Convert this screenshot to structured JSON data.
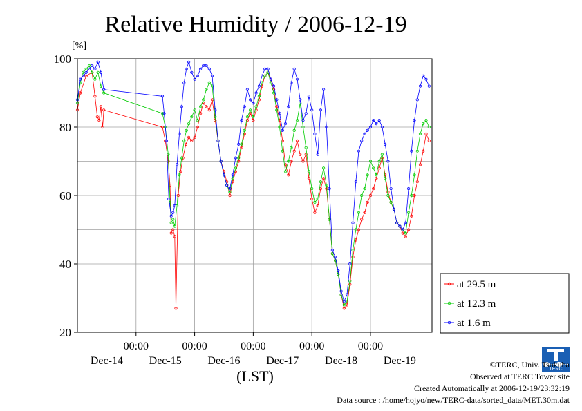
{
  "chart_data": {
    "type": "line",
    "title": "Relative Humidity / 2006-12-19",
    "unit": "[%]",
    "xlabel": "(LST)",
    "ylim": [
      20,
      100
    ],
    "yticks": [
      20,
      40,
      60,
      80,
      100
    ],
    "xlim": [
      0,
      6.05
    ],
    "xticks": [
      {
        "x": 1,
        "time": "00:00",
        "date": "Dec-14"
      },
      {
        "x": 2,
        "time": "00:00",
        "date": "Dec-15"
      },
      {
        "x": 3,
        "time": "00:00",
        "date": "Dec-16"
      },
      {
        "x": 4,
        "time": "00:00",
        "date": "Dec-17"
      },
      {
        "x": 5,
        "time": "00:00",
        "date": "Dec-18"
      }
    ],
    "extra_date_labels": [
      {
        "x": 0.5,
        "date": "Dec-14"
      },
      {
        "x": 1.5,
        "date": "Dec-15"
      },
      {
        "x": 2.5,
        "date": "Dec-16"
      },
      {
        "x": 3.5,
        "date": "Dec-17"
      },
      {
        "x": 4.5,
        "date": "Dec-18"
      },
      {
        "x": 5.5,
        "date": "Dec-19"
      }
    ],
    "grid": true,
    "legend_position": "bottom-right outside",
    "series": [
      {
        "name": "at 29.5 m",
        "color": "#ff0000",
        "points": [
          [
            0,
            85
          ],
          [
            0.05,
            90
          ],
          [
            0.15,
            95
          ],
          [
            0.25,
            96
          ],
          [
            0.3,
            89
          ],
          [
            0.34,
            83
          ],
          [
            0.37,
            82
          ],
          [
            0.4,
            86
          ],
          [
            0.43,
            80
          ],
          [
            0.45,
            85
          ],
          [
            1.45,
            80
          ],
          [
            1.5,
            76
          ],
          [
            1.55,
            70
          ],
          [
            1.58,
            63
          ],
          [
            1.6,
            49
          ],
          [
            1.63,
            50
          ],
          [
            1.66,
            48
          ],
          [
            1.68,
            27
          ],
          [
            1.72,
            60
          ],
          [
            1.76,
            67
          ],
          [
            1.8,
            71
          ],
          [
            1.85,
            75
          ],
          [
            1.9,
            77
          ],
          [
            1.95,
            76
          ],
          [
            2.0,
            77
          ],
          [
            2.05,
            80
          ],
          [
            2.1,
            84
          ],
          [
            2.15,
            87
          ],
          [
            2.2,
            86
          ],
          [
            2.25,
            85
          ],
          [
            2.3,
            88
          ],
          [
            2.35,
            82
          ],
          [
            2.4,
            76
          ],
          [
            2.45,
            70
          ],
          [
            2.5,
            67
          ],
          [
            2.55,
            64
          ],
          [
            2.6,
            60
          ],
          [
            2.65,
            64
          ],
          [
            2.7,
            67
          ],
          [
            2.75,
            70
          ],
          [
            2.8,
            74
          ],
          [
            2.85,
            78
          ],
          [
            2.9,
            82
          ],
          [
            2.95,
            84
          ],
          [
            3.0,
            82
          ],
          [
            3.05,
            85
          ],
          [
            3.1,
            88
          ],
          [
            3.15,
            92
          ],
          [
            3.2,
            95
          ],
          [
            3.25,
            96
          ],
          [
            3.3,
            94
          ],
          [
            3.35,
            91
          ],
          [
            3.4,
            86
          ],
          [
            3.45,
            82
          ],
          [
            3.5,
            76
          ],
          [
            3.55,
            69
          ],
          [
            3.6,
            66
          ],
          [
            3.65,
            70
          ],
          [
            3.7,
            73
          ],
          [
            3.75,
            76
          ],
          [
            3.8,
            72
          ],
          [
            3.85,
            70
          ],
          [
            3.9,
            72
          ],
          [
            3.95,
            65
          ],
          [
            4.0,
            59
          ],
          [
            4.05,
            55
          ],
          [
            4.1,
            57
          ],
          [
            4.15,
            62
          ],
          [
            4.2,
            65
          ],
          [
            4.25,
            62
          ],
          [
            4.3,
            53
          ],
          [
            4.35,
            43
          ],
          [
            4.4,
            41
          ],
          [
            4.45,
            37
          ],
          [
            4.5,
            31
          ],
          [
            4.55,
            27
          ],
          [
            4.6,
            28
          ],
          [
            4.65,
            34
          ],
          [
            4.7,
            42
          ],
          [
            4.75,
            47
          ],
          [
            4.8,
            50
          ],
          [
            4.85,
            53
          ],
          [
            4.9,
            55
          ],
          [
            4.95,
            58
          ],
          [
            5.0,
            60
          ],
          [
            5.05,
            62
          ],
          [
            5.1,
            65
          ],
          [
            5.15,
            68
          ],
          [
            5.2,
            71
          ],
          [
            5.25,
            66
          ],
          [
            5.3,
            61
          ],
          [
            5.35,
            58
          ],
          [
            5.4,
            56
          ],
          [
            5.45,
            52
          ],
          [
            5.5,
            51
          ],
          [
            5.55,
            49
          ],
          [
            5.6,
            48
          ],
          [
            5.65,
            50
          ],
          [
            5.7,
            54
          ],
          [
            5.75,
            60
          ],
          [
            5.8,
            64
          ],
          [
            5.85,
            69
          ],
          [
            5.9,
            73
          ],
          [
            5.95,
            78
          ],
          [
            6.0,
            76
          ]
        ]
      },
      {
        "name": "at 12.3 m",
        "color": "#00cc00",
        "points": [
          [
            0,
            87
          ],
          [
            0.05,
            93
          ],
          [
            0.1,
            96
          ],
          [
            0.15,
            97
          ],
          [
            0.2,
            98
          ],
          [
            0.25,
            96
          ],
          [
            0.3,
            94
          ],
          [
            0.35,
            96
          ],
          [
            0.4,
            92
          ],
          [
            0.45,
            90
          ],
          [
            1.45,
            84
          ],
          [
            1.5,
            80
          ],
          [
            1.55,
            72
          ],
          [
            1.58,
            58
          ],
          [
            1.6,
            52
          ],
          [
            1.63,
            53
          ],
          [
            1.66,
            51
          ],
          [
            1.7,
            57
          ],
          [
            1.74,
            66
          ],
          [
            1.78,
            71
          ],
          [
            1.82,
            76
          ],
          [
            1.86,
            79
          ],
          [
            1.9,
            81
          ],
          [
            1.95,
            83
          ],
          [
            2.0,
            85
          ],
          [
            2.05,
            82
          ],
          [
            2.1,
            86
          ],
          [
            2.15,
            88
          ],
          [
            2.2,
            91
          ],
          [
            2.25,
            93
          ],
          [
            2.3,
            92
          ],
          [
            2.35,
            83
          ],
          [
            2.4,
            76
          ],
          [
            2.45,
            70
          ],
          [
            2.5,
            66
          ],
          [
            2.55,
            63
          ],
          [
            2.6,
            61
          ],
          [
            2.65,
            65
          ],
          [
            2.7,
            68
          ],
          [
            2.75,
            71
          ],
          [
            2.8,
            75
          ],
          [
            2.85,
            79
          ],
          [
            2.9,
            83
          ],
          [
            2.95,
            85
          ],
          [
            3.0,
            83
          ],
          [
            3.05,
            86
          ],
          [
            3.1,
            89
          ],
          [
            3.15,
            93
          ],
          [
            3.2,
            95
          ],
          [
            3.25,
            96
          ],
          [
            3.3,
            93
          ],
          [
            3.35,
            90
          ],
          [
            3.4,
            85
          ],
          [
            3.45,
            80
          ],
          [
            3.5,
            73
          ],
          [
            3.55,
            67
          ],
          [
            3.6,
            70
          ],
          [
            3.65,
            74
          ],
          [
            3.7,
            79
          ],
          [
            3.75,
            82
          ],
          [
            3.8,
            87
          ],
          [
            3.85,
            80
          ],
          [
            3.9,
            74
          ],
          [
            3.95,
            67
          ],
          [
            4.0,
            62
          ],
          [
            4.05,
            58
          ],
          [
            4.1,
            59
          ],
          [
            4.15,
            64
          ],
          [
            4.2,
            68
          ],
          [
            4.25,
            63
          ],
          [
            4.3,
            53
          ],
          [
            4.35,
            43
          ],
          [
            4.4,
            41
          ],
          [
            4.45,
            37
          ],
          [
            4.5,
            31
          ],
          [
            4.55,
            28
          ],
          [
            4.6,
            29
          ],
          [
            4.65,
            35
          ],
          [
            4.7,
            44
          ],
          [
            4.75,
            50
          ],
          [
            4.8,
            55
          ],
          [
            4.85,
            60
          ],
          [
            4.9,
            62
          ],
          [
            4.95,
            66
          ],
          [
            5.0,
            70
          ],
          [
            5.05,
            68
          ],
          [
            5.1,
            66
          ],
          [
            5.15,
            70
          ],
          [
            5.2,
            72
          ],
          [
            5.25,
            65
          ],
          [
            5.3,
            60
          ],
          [
            5.35,
            58
          ],
          [
            5.4,
            56
          ],
          [
            5.45,
            52
          ],
          [
            5.5,
            51
          ],
          [
            5.55,
            50
          ],
          [
            5.6,
            49
          ],
          [
            5.65,
            55
          ],
          [
            5.7,
            60
          ],
          [
            5.75,
            66
          ],
          [
            5.8,
            73
          ],
          [
            5.85,
            78
          ],
          [
            5.9,
            81
          ],
          [
            5.95,
            82
          ],
          [
            6.0,
            80
          ]
        ]
      },
      {
        "name": "at 1.6 m",
        "color": "#0000ff",
        "points": [
          [
            0,
            88
          ],
          [
            0.05,
            94
          ],
          [
            0.1,
            95
          ],
          [
            0.15,
            96
          ],
          [
            0.2,
            97
          ],
          [
            0.25,
            98
          ],
          [
            0.3,
            97
          ],
          [
            0.35,
            99
          ],
          [
            0.4,
            96
          ],
          [
            0.45,
            91
          ],
          [
            1.45,
            89
          ],
          [
            1.48,
            84
          ],
          [
            1.52,
            76
          ],
          [
            1.56,
            59
          ],
          [
            1.6,
            54
          ],
          [
            1.63,
            55
          ],
          [
            1.66,
            57
          ],
          [
            1.7,
            69
          ],
          [
            1.74,
            78
          ],
          [
            1.78,
            86
          ],
          [
            1.82,
            93
          ],
          [
            1.86,
            97
          ],
          [
            1.9,
            99
          ],
          [
            1.95,
            96
          ],
          [
            2.0,
            94
          ],
          [
            2.05,
            95
          ],
          [
            2.1,
            97
          ],
          [
            2.15,
            98
          ],
          [
            2.2,
            98
          ],
          [
            2.25,
            97
          ],
          [
            2.3,
            95
          ],
          [
            2.35,
            85
          ],
          [
            2.4,
            76
          ],
          [
            2.45,
            70
          ],
          [
            2.5,
            66
          ],
          [
            2.55,
            63
          ],
          [
            2.6,
            62
          ],
          [
            2.65,
            66
          ],
          [
            2.7,
            71
          ],
          [
            2.75,
            75
          ],
          [
            2.8,
            82
          ],
          [
            2.85,
            86
          ],
          [
            2.9,
            91
          ],
          [
            2.95,
            88
          ],
          [
            3.0,
            87
          ],
          [
            3.05,
            90
          ],
          [
            3.1,
            92
          ],
          [
            3.15,
            95
          ],
          [
            3.2,
            97
          ],
          [
            3.25,
            97
          ],
          [
            3.3,
            94
          ],
          [
            3.35,
            92
          ],
          [
            3.4,
            88
          ],
          [
            3.45,
            84
          ],
          [
            3.5,
            79
          ],
          [
            3.55,
            81
          ],
          [
            3.6,
            86
          ],
          [
            3.65,
            93
          ],
          [
            3.7,
            97
          ],
          [
            3.75,
            94
          ],
          [
            3.8,
            88
          ],
          [
            3.85,
            82
          ],
          [
            3.9,
            84
          ],
          [
            3.95,
            89
          ],
          [
            4.0,
            85
          ],
          [
            4.05,
            78
          ],
          [
            4.1,
            72
          ],
          [
            4.15,
            85
          ],
          [
            4.2,
            91
          ],
          [
            4.25,
            80
          ],
          [
            4.3,
            62
          ],
          [
            4.35,
            44
          ],
          [
            4.4,
            42
          ],
          [
            4.45,
            38
          ],
          [
            4.5,
            32
          ],
          [
            4.55,
            29
          ],
          [
            4.6,
            31
          ],
          [
            4.65,
            40
          ],
          [
            4.7,
            52
          ],
          [
            4.75,
            64
          ],
          [
            4.8,
            73
          ],
          [
            4.85,
            76
          ],
          [
            4.9,
            78
          ],
          [
            4.95,
            79
          ],
          [
            5.0,
            80
          ],
          [
            5.05,
            82
          ],
          [
            5.1,
            81
          ],
          [
            5.15,
            82
          ],
          [
            5.2,
            80
          ],
          [
            5.25,
            75
          ],
          [
            5.3,
            70
          ],
          [
            5.35,
            62
          ],
          [
            5.4,
            56
          ],
          [
            5.45,
            52
          ],
          [
            5.5,
            51
          ],
          [
            5.55,
            50
          ],
          [
            5.6,
            52
          ],
          [
            5.65,
            62
          ],
          [
            5.7,
            73
          ],
          [
            5.75,
            82
          ],
          [
            5.8,
            88
          ],
          [
            5.85,
            92
          ],
          [
            5.9,
            95
          ],
          [
            5.95,
            94
          ],
          [
            6.0,
            92
          ]
        ]
      }
    ]
  },
  "footer": {
    "copyright": "©TERC, Univ. Tsukuba",
    "site": "Observed at TERC Tower site",
    "created": "Created Automatically at 2006-12-19/23:32:19",
    "source": "Data source : /home/hojyo/new/TERC-data/sorted_data/MET.30m.dat"
  },
  "logo": {
    "text": "TERC",
    "color": "#1a5fb4"
  }
}
